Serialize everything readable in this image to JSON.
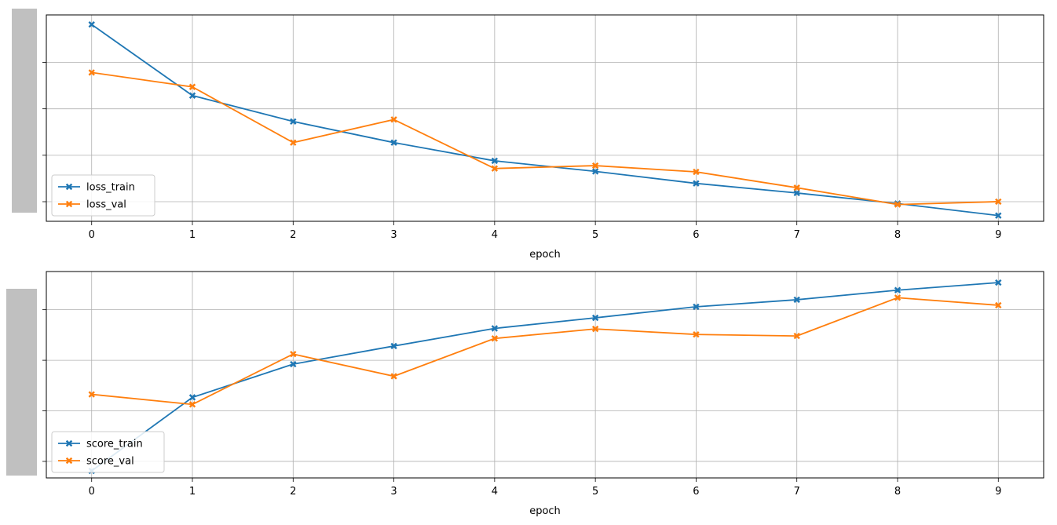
{
  "chart_data": [
    {
      "type": "line",
      "xlabel": "epoch",
      "ylabel": "",
      "x": [
        0,
        1,
        2,
        3,
        4,
        5,
        6,
        7,
        8,
        9
      ],
      "ylim": [
        0.25,
        2.4
      ],
      "yticks_hidden": true,
      "grid": true,
      "legend_position": "lower-left",
      "series": [
        {
          "name": "loss_train",
          "color": "#1f77b4",
          "marker": "X",
          "values": [
            2.3,
            1.56,
            1.29,
            1.07,
            0.88,
            0.77,
            0.645,
            0.545,
            0.435,
            0.31
          ]
        },
        {
          "name": "loss_val",
          "color": "#ff7f0e",
          "marker": "X",
          "values": [
            1.8,
            1.65,
            1.07,
            1.31,
            0.8,
            0.83,
            0.765,
            0.6,
            0.425,
            0.455
          ]
        }
      ]
    },
    {
      "type": "line",
      "xlabel": "epoch",
      "ylabel": "",
      "x": [
        0,
        1,
        2,
        3,
        4,
        5,
        6,
        7,
        8,
        9
      ],
      "ylim": [
        0.15,
        2.2
      ],
      "yticks_hidden": true,
      "grid": true,
      "legend_position": "lower-left",
      "series": [
        {
          "name": "score_train",
          "color": "#1f77b4",
          "marker": "X",
          "values": [
            0.22,
            0.95,
            1.28,
            1.46,
            1.635,
            1.74,
            1.85,
            1.92,
            2.015,
            2.09
          ]
        },
        {
          "name": "score_val",
          "color": "#ff7f0e",
          "marker": "X",
          "values": [
            0.98,
            0.88,
            1.38,
            1.16,
            1.535,
            1.63,
            1.575,
            1.56,
            1.94,
            1.865
          ]
        }
      ]
    }
  ]
}
